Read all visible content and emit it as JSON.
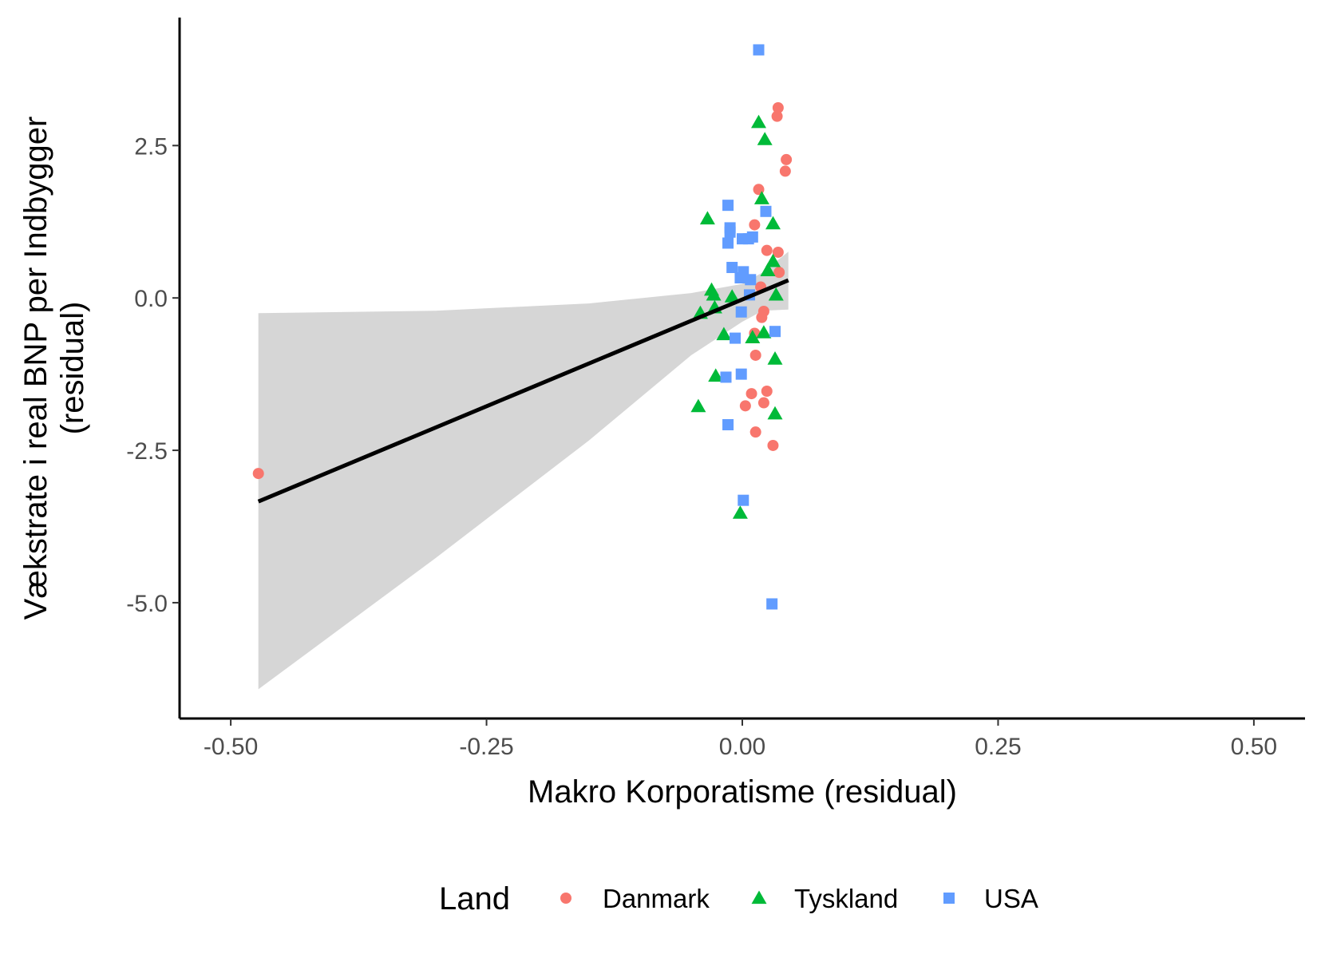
{
  "chart_data": {
    "type": "scatter",
    "xlabel": "Makro Korporatisme (residual)",
    "ylabel": "Vækstrate i real BNP per Indbygger",
    "ylabel2": "(residual)",
    "xlim": [
      -0.55,
      0.55
    ],
    "ylim": [
      -6.9,
      4.6
    ],
    "xticks": [
      -0.5,
      -0.25,
      0.0,
      0.25,
      0.5
    ],
    "xtick_labels": [
      "-0.50",
      "-0.25",
      "0.00",
      "0.25",
      "0.50"
    ],
    "yticks": [
      -5.0,
      -2.5,
      0.0,
      2.5
    ],
    "ytick_labels": [
      "-5.0",
      "-2.5",
      "0.0",
      "2.5"
    ],
    "grid": false,
    "legend": {
      "title": "Land",
      "position": "bottom",
      "entries": [
        "Danmark",
        "Tyskland",
        "USA"
      ]
    },
    "fit": {
      "x": [
        -0.473,
        0.045
      ],
      "y": [
        -3.34,
        0.29
      ]
    },
    "ribbon": {
      "x": [
        -0.473,
        -0.3,
        -0.15,
        -0.05,
        0.0,
        0.02,
        0.045
      ],
      "upper": [
        -0.25,
        -0.21,
        -0.09,
        0.08,
        0.23,
        0.42,
        0.76
      ],
      "lower": [
        -6.42,
        -4.27,
        -2.34,
        -0.94,
        -0.39,
        -0.21,
        -0.19
      ]
    },
    "series": [
      {
        "name": "Danmark",
        "marker": "circle",
        "color": "#F8766D",
        "points": [
          [
            -0.473,
            -2.88
          ],
          [
            0.035,
            3.12
          ],
          [
            0.034,
            2.98
          ],
          [
            0.043,
            2.27
          ],
          [
            0.042,
            2.08
          ],
          [
            0.016,
            1.78
          ],
          [
            0.012,
            1.2
          ],
          [
            0.024,
            0.78
          ],
          [
            0.035,
            0.75
          ],
          [
            0.036,
            0.42
          ],
          [
            0.018,
            0.18
          ],
          [
            0.021,
            -0.22
          ],
          [
            0.019,
            -0.32
          ],
          [
            0.012,
            -0.58
          ],
          [
            0.013,
            -0.94
          ],
          [
            0.024,
            -1.53
          ],
          [
            0.009,
            -1.57
          ],
          [
            0.021,
            -1.72
          ],
          [
            0.003,
            -1.77
          ],
          [
            0.013,
            -2.2
          ],
          [
            0.03,
            -2.42
          ]
        ]
      },
      {
        "name": "Tyskland",
        "marker": "triangle",
        "color": "#00BA38",
        "points": [
          [
            0.016,
            2.88
          ],
          [
            0.022,
            2.6
          ],
          [
            0.019,
            1.63
          ],
          [
            0.03,
            1.22
          ],
          [
            -0.034,
            1.3
          ],
          [
            0.03,
            0.6
          ],
          [
            0.025,
            0.45
          ],
          [
            -0.03,
            0.13
          ],
          [
            -0.028,
            0.05
          ],
          [
            -0.01,
            0.02
          ],
          [
            0.033,
            0.05
          ],
          [
            -0.027,
            -0.16
          ],
          [
            -0.041,
            -0.25
          ],
          [
            -0.018,
            -0.6
          ],
          [
            0.021,
            -0.57
          ],
          [
            0.01,
            -0.65
          ],
          [
            0.032,
            -1.0
          ],
          [
            -0.026,
            -1.28
          ],
          [
            0.032,
            -1.9
          ],
          [
            -0.043,
            -1.78
          ],
          [
            -0.002,
            -3.53
          ]
        ]
      },
      {
        "name": "USA",
        "marker": "square",
        "color": "#619CFF",
        "points": [
          [
            0.016,
            4.07
          ],
          [
            -0.014,
            1.52
          ],
          [
            0.023,
            1.42
          ],
          [
            -0.012,
            1.15
          ],
          [
            -0.012,
            1.08
          ],
          [
            0.01,
            1.0
          ],
          [
            0.0,
            0.97
          ],
          [
            0.006,
            0.97
          ],
          [
            -0.014,
            0.9
          ],
          [
            -0.01,
            0.5
          ],
          [
            0.001,
            0.43
          ],
          [
            -0.002,
            0.33
          ],
          [
            0.008,
            0.3
          ],
          [
            0.007,
            0.05
          ],
          [
            -0.001,
            -0.23
          ],
          [
            0.032,
            -0.55
          ],
          [
            -0.007,
            -0.66
          ],
          [
            -0.001,
            -1.25
          ],
          [
            -0.016,
            -1.3
          ],
          [
            -0.014,
            -2.08
          ],
          [
            0.001,
            -3.32
          ],
          [
            0.029,
            -5.02
          ]
        ]
      }
    ]
  }
}
